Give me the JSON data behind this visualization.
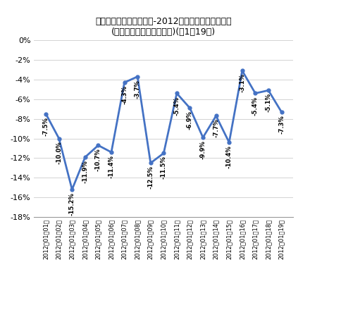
{
  "title_line1": "東京電力の最大電力推移-2012年における前年同日比",
  "title_line2": "(日ベース、曜日修正済み)(～1月19日)",
  "dates": [
    "2012年01月01日",
    "2012年01月02日",
    "2012年01月03日",
    "2012年01月04日",
    "2012年01月05日",
    "2012年01月06日",
    "2012年01月07日",
    "2012年01月08日",
    "2012年01月09日",
    "2012年01月10日",
    "2012年01月11日",
    "2012年01月12日",
    "2012年01月13日",
    "2012年01月14日",
    "2012年01月15日",
    "2012年01月16日",
    "2012年01月17日",
    "2012年01月18日",
    "2012年01月19日"
  ],
  "values": [
    -7.5,
    -10.0,
    -15.2,
    -11.9,
    -10.7,
    -11.4,
    -4.3,
    -3.7,
    -12.5,
    -11.5,
    -5.4,
    -6.9,
    -9.9,
    -7.7,
    -10.4,
    -3.1,
    -5.4,
    -5.1,
    -7.3
  ],
  "labels": [
    "-7.5%",
    "-10.0%",
    "-15.2%",
    "-11.9%",
    "-10.7%",
    "-11.4%",
    "-4.3%",
    "-3.7%",
    "-12.5%",
    "-11.5%",
    "-5.4%",
    "-6.9%",
    "-9.9%",
    "-7.7%",
    "-10.4%",
    "-3.1%",
    "-5.4%",
    "-5.1%",
    "-7.3%"
  ],
  "line_color": "#4472C4",
  "background_color": "#ffffff",
  "ylim_min": -18,
  "ylim_max": 0,
  "yticks": [
    0,
    -2,
    -4,
    -6,
    -8,
    -10,
    -12,
    -14,
    -16,
    -18
  ],
  "ytick_labels": [
    "0%",
    "-2%",
    "-4%",
    "-6%",
    "-8%",
    "-10%",
    "-12%",
    "-14%",
    "-16%",
    "-18%"
  ]
}
